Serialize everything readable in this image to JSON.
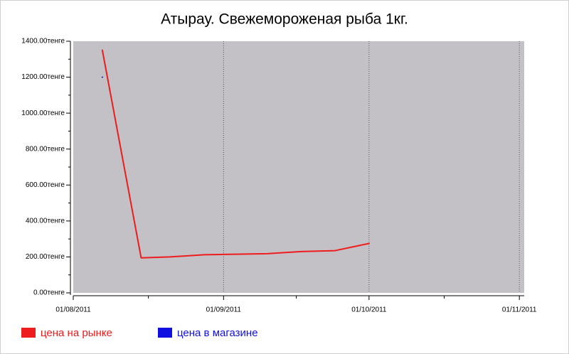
{
  "chart_data": {
    "type": "line",
    "title": "Атырау. Свежемороженая рыба 1кг.",
    "x": [
      "2011-08-07",
      "2011-08-15",
      "2011-08-21",
      "2011-08-28",
      "2011-09-10",
      "2011-09-17",
      "2011-09-24",
      "2011-10-01"
    ],
    "series": [
      {
        "name": "цена на рынке",
        "color": "#ee1c1c",
        "values": [
          1350,
          195,
          200,
          212,
          218,
          230,
          235,
          275
        ]
      },
      {
        "name": "цена в магазине",
        "color": "#1010e0",
        "values": [
          1200,
          null,
          null,
          null,
          null,
          null,
          null,
          null
        ]
      }
    ],
    "xlim": [
      "2011-08-01",
      "2011-11-02"
    ],
    "xticks": [
      {
        "value": "2011-08-01",
        "label": "01/08/2011"
      },
      {
        "value": "2011-09-01",
        "label": "01/09/2011"
      },
      {
        "value": "2011-10-01",
        "label": "01/10/2011"
      },
      {
        "value": "2011-11-01",
        "label": "01/11/2011"
      }
    ],
    "ylim": [
      0,
      1400
    ],
    "yticks": [
      {
        "value": 0,
        "label": "0.00тенге"
      },
      {
        "value": 200,
        "label": "200.00тенге"
      },
      {
        "value": 400,
        "label": "400.00тенге"
      },
      {
        "value": 600,
        "label": "600.00тенге"
      },
      {
        "value": 800,
        "label": "800.00тенге"
      },
      {
        "value": 1000,
        "label": "1000.00тенге"
      },
      {
        "value": 1200,
        "label": "1200.00тенге"
      },
      {
        "value": 1400,
        "label": "1400.00тенге"
      }
    ],
    "grid": true,
    "legend": "bottom-left",
    "background": "#c3c1c6"
  }
}
